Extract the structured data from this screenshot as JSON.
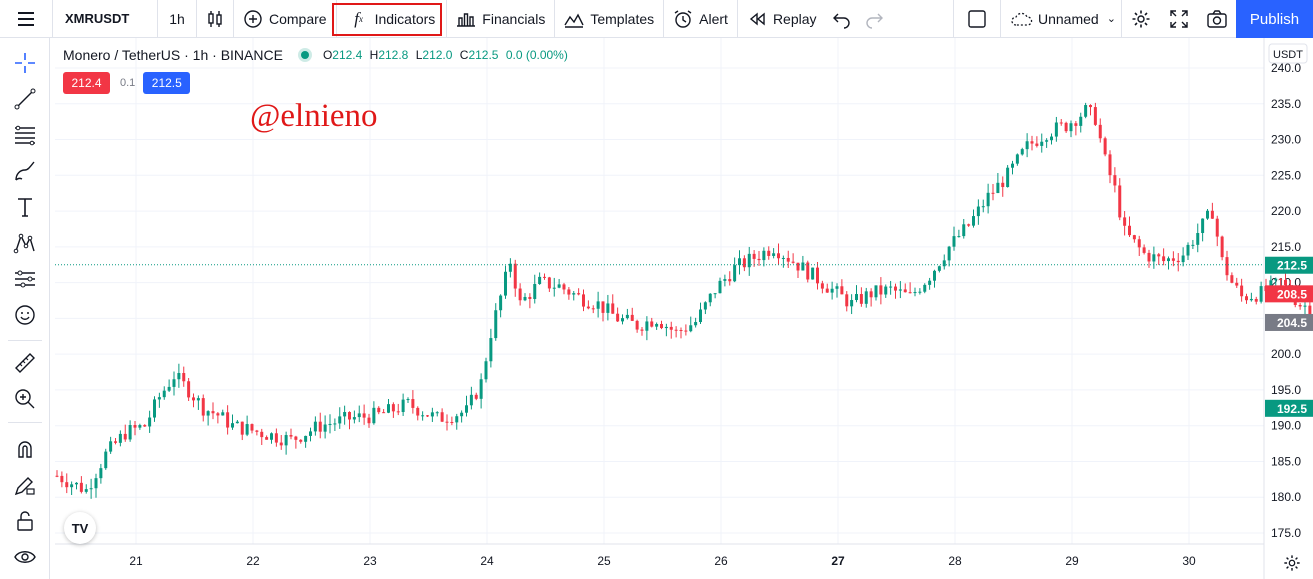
{
  "toolbar": {
    "symbol": "XMRUSDT",
    "interval": "1h",
    "compare": "Compare",
    "indicators": "Indicators",
    "financials": "Financials",
    "templates": "Templates",
    "alert": "Alert",
    "replay": "Replay",
    "layout_name": "Unnamed",
    "publish": "Publish"
  },
  "legend": {
    "title": "Monero / TetherUS · 1h · BINANCE",
    "open_label": "O",
    "open": "212.4",
    "high_label": "H",
    "high": "212.8",
    "low_label": "L",
    "low": "212.0",
    "close_label": "C",
    "close": "212.5",
    "change": "0.0 (0.00%)"
  },
  "trade": {
    "sell": "212.4",
    "spread": "0.1",
    "buy": "212.5"
  },
  "watermark": "@elnieno",
  "logo_text": "TV",
  "colors": {
    "up": "#089981",
    "down": "#f23645",
    "accent": "#2962ff",
    "highlight": "#e01818"
  },
  "chart_data": {
    "type": "candlestick",
    "currency_label": "USDT",
    "y_ticks": [
      "240.0",
      "235.0",
      "230.0",
      "225.0",
      "220.0",
      "215.0",
      "210.0",
      "205.0",
      "200.0",
      "195.0",
      "190.0",
      "185.0",
      "180.0",
      "175.0"
    ],
    "ylim": [
      175,
      240.5
    ],
    "x_ticks": [
      "21",
      "22",
      "23",
      "24",
      "25",
      "26",
      "27",
      "28",
      "29",
      "30"
    ],
    "bold_x_tick": "27",
    "price_labels": [
      {
        "value": 212.5,
        "text": "212.5",
        "color": "#089981"
      },
      {
        "value": 208.5,
        "text": "208.5",
        "color": "#f23645"
      },
      {
        "value": 204.5,
        "text": "204.5",
        "color": "#787b86"
      },
      {
        "value": 192.5,
        "text": "192.5",
        "color": "#089981"
      }
    ],
    "last_price": 212.5,
    "path": [
      {
        "h": 0,
        "p": 183
      },
      {
        "h": 6,
        "p": 181
      },
      {
        "h": 10,
        "p": 186
      },
      {
        "h": 14,
        "p": 189
      },
      {
        "h": 18,
        "p": 190
      },
      {
        "h": 21,
        "p": 194
      },
      {
        "h": 24,
        "p": 197
      },
      {
        "h": 27,
        "p": 195
      },
      {
        "h": 30,
        "p": 192.5
      },
      {
        "h": 33,
        "p": 191.5
      },
      {
        "h": 36,
        "p": 190
      },
      {
        "h": 42,
        "p": 189
      },
      {
        "h": 48,
        "p": 188
      },
      {
        "h": 54,
        "p": 190
      },
      {
        "h": 60,
        "p": 191
      },
      {
        "h": 66,
        "p": 191.5
      },
      {
        "h": 72,
        "p": 193
      },
      {
        "h": 78,
        "p": 191
      },
      {
        "h": 84,
        "p": 192
      },
      {
        "h": 87,
        "p": 196
      },
      {
        "h": 89,
        "p": 203
      },
      {
        "h": 91,
        "p": 208
      },
      {
        "h": 93,
        "p": 213
      },
      {
        "h": 95,
        "p": 207
      },
      {
        "h": 99,
        "p": 210
      },
      {
        "h": 103,
        "p": 209.5
      },
      {
        "h": 107,
        "p": 208
      },
      {
        "h": 111,
        "p": 207
      },
      {
        "h": 115,
        "p": 205
      },
      {
        "h": 119,
        "p": 204
      },
      {
        "h": 123,
        "p": 205
      },
      {
        "h": 127,
        "p": 203
      },
      {
        "h": 131,
        "p": 204.5
      },
      {
        "h": 135,
        "p": 209
      },
      {
        "h": 139,
        "p": 212
      },
      {
        "h": 143,
        "p": 213.5
      },
      {
        "h": 147,
        "p": 215
      },
      {
        "h": 151,
        "p": 213
      },
      {
        "h": 155,
        "p": 211
      },
      {
        "h": 159,
        "p": 209
      },
      {
        "h": 163,
        "p": 207
      },
      {
        "h": 167,
        "p": 208.5
      },
      {
        "h": 171,
        "p": 209
      },
      {
        "h": 175,
        "p": 208
      },
      {
        "h": 179,
        "p": 211
      },
      {
        "h": 183,
        "p": 215
      },
      {
        "h": 187,
        "p": 218
      },
      {
        "h": 191,
        "p": 222
      },
      {
        "h": 195,
        "p": 225
      },
      {
        "h": 199,
        "p": 229
      },
      {
        "h": 203,
        "p": 231
      },
      {
        "h": 207,
        "p": 232
      },
      {
        "h": 211,
        "p": 234
      },
      {
        "h": 213,
        "p": 233
      },
      {
        "h": 215,
        "p": 227
      },
      {
        "h": 217,
        "p": 223
      },
      {
        "h": 219,
        "p": 217
      },
      {
        "h": 223,
        "p": 214
      },
      {
        "h": 227,
        "p": 213
      },
      {
        "h": 231,
        "p": 214
      },
      {
        "h": 235,
        "p": 218
      },
      {
        "h": 237,
        "p": 220
      },
      {
        "h": 239,
        "p": 213
      },
      {
        "h": 241,
        "p": 210
      },
      {
        "h": 243,
        "p": 208
      },
      {
        "h": 247,
        "p": 208.5
      },
      {
        "h": 251,
        "p": 210
      },
      {
        "h": 255,
        "p": 207
      },
      {
        "h": 259,
        "p": 206
      },
      {
        "h": 261,
        "p": 204
      },
      {
        "h": 263,
        "p": 207
      },
      {
        "h": 265,
        "p": 210
      },
      {
        "h": 267,
        "p": 213
      },
      {
        "h": 269,
        "p": 211
      },
      {
        "h": 271,
        "p": 214
      },
      {
        "h": 273,
        "p": 218
      },
      {
        "h": 275,
        "p": 215
      },
      {
        "h": 277,
        "p": 213
      },
      {
        "h": 279,
        "p": 211
      },
      {
        "h": 280,
        "p": 212.5
      }
    ]
  },
  "icons": {
    "menu": "hamburger-icon",
    "ctype": "candles-icon",
    "compare": "plus-circle-icon",
    "indicators": "fx-icon",
    "financials": "bars-icon",
    "templates": "templates-icon",
    "alert": "alarm-icon",
    "replay": "rewind-icon",
    "undo": "undo-icon",
    "redo": "redo-icon",
    "layout": "square-icon",
    "cloud": "cloud-icon",
    "settings": "gear-icon",
    "fullscreen": "fullscreen-icon",
    "snapshot": "camera-icon"
  }
}
